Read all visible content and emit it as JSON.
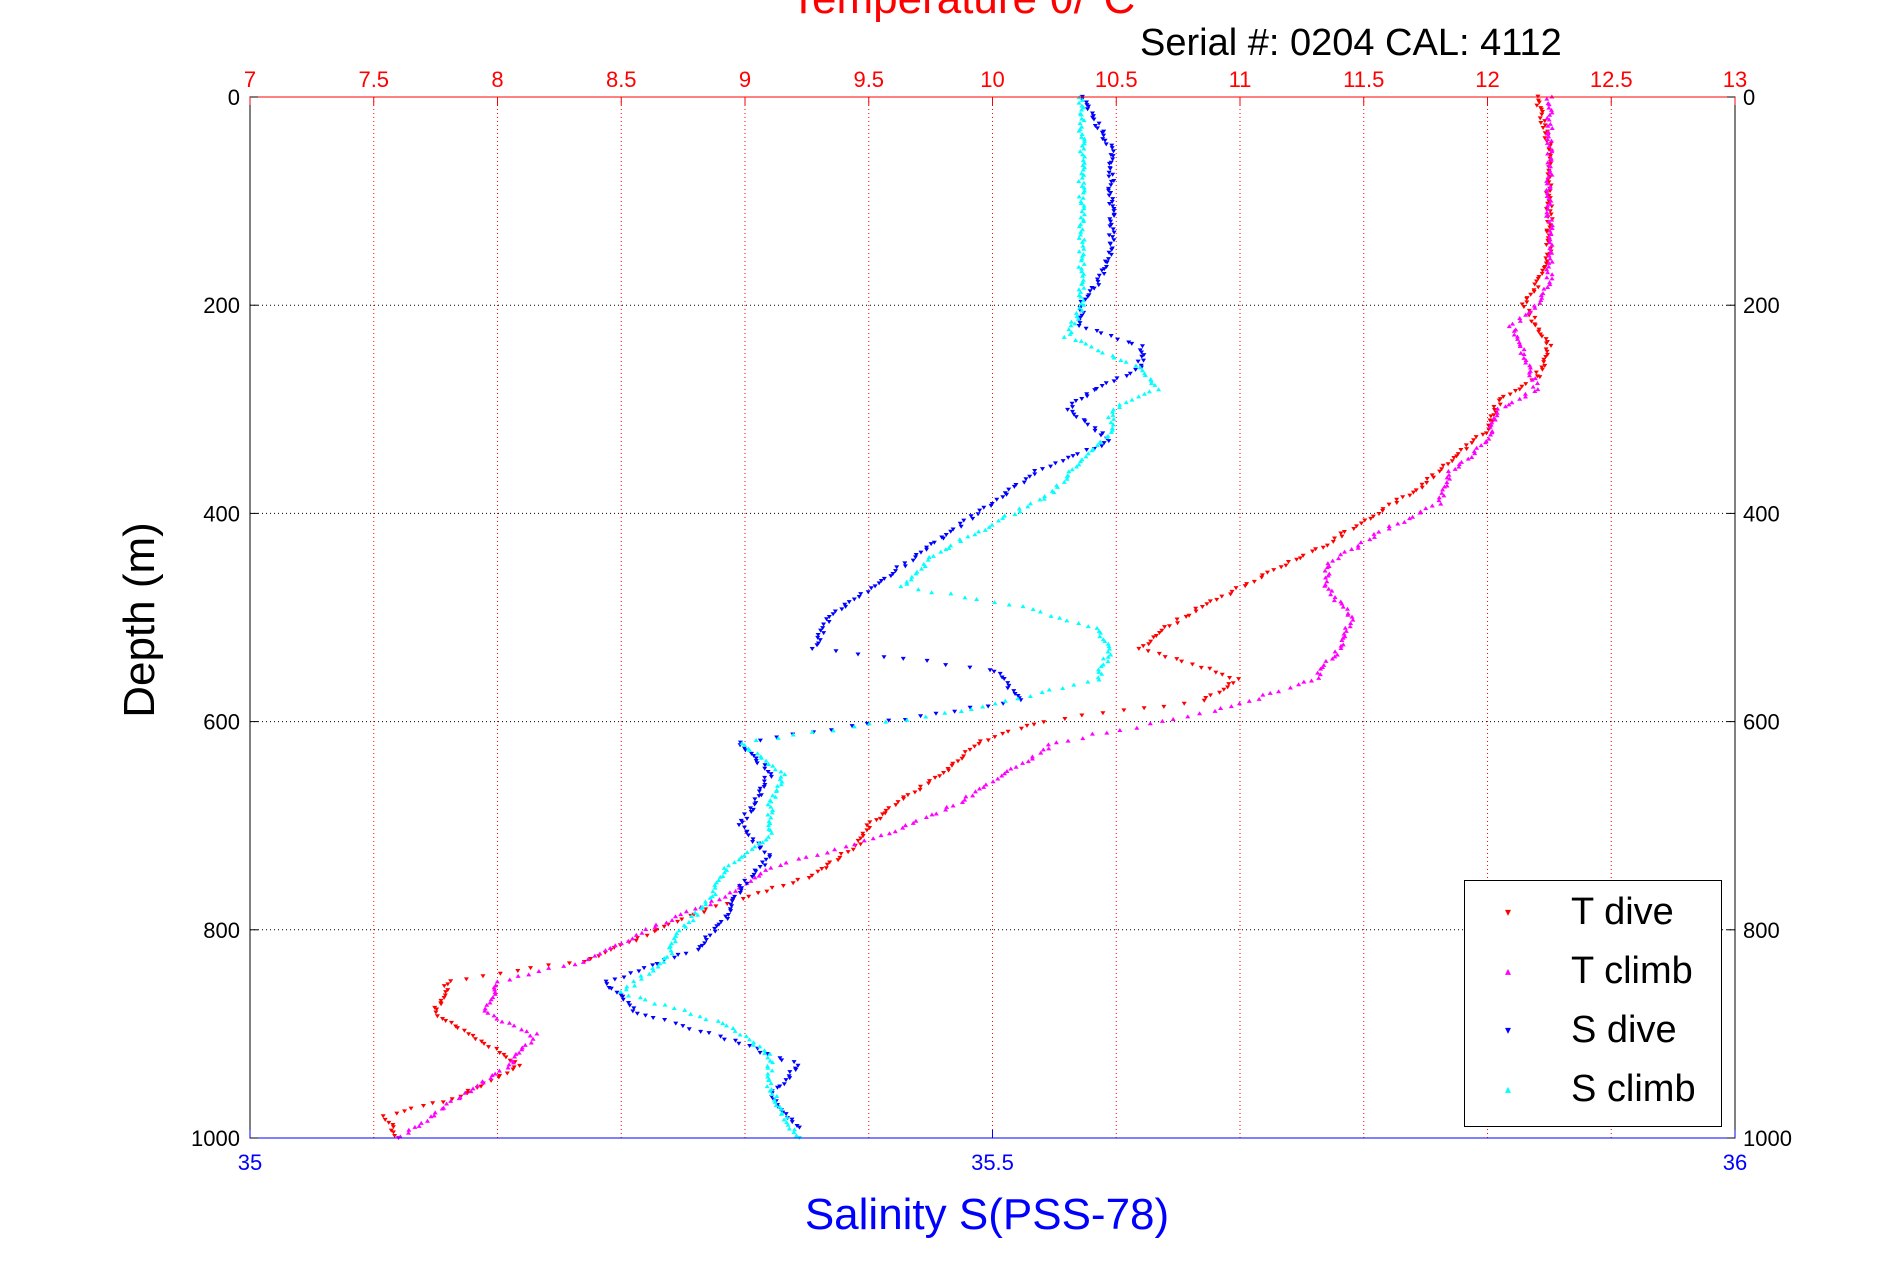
{
  "chart_data": {
    "type": "scatter",
    "title_top": "Temperature θ/°C",
    "subtitle": "Serial #: 0204  CAL: 4112",
    "ylabel": "Depth (m)",
    "xlabel_bottom": "Salinity S(PSS-78)",
    "y_axis": {
      "range": [
        0,
        1000
      ],
      "inverted": true,
      "ticks": [
        "0",
        "200",
        "400",
        "600",
        "800",
        "1000"
      ]
    },
    "x_top_axis": {
      "name": "Temperature",
      "range": [
        7,
        13
      ],
      "ticks": [
        "7",
        "7.5",
        "8",
        "8.5",
        "9",
        "9.5",
        "10",
        "10.5",
        "11",
        "11.5",
        "12",
        "12.5",
        "13"
      ]
    },
    "x_bottom_axis": {
      "name": "Salinity",
      "range": [
        35,
        36
      ],
      "ticks": [
        "35",
        "35.5",
        "36"
      ]
    },
    "grid": true,
    "legend_position": "bottom-right",
    "series": [
      {
        "name": "T dive",
        "axis": "top",
        "color": "#ff0000",
        "marker": "triangle-down",
        "depth": [
          0,
          50,
          100,
          150,
          180,
          200,
          240,
          270,
          290,
          320,
          350,
          380,
          400,
          430,
          460,
          490,
          510,
          530,
          560,
          580,
          600,
          620,
          650,
          680,
          700,
          720,
          750,
          780,
          800,
          830,
          850,
          880,
          910,
          930,
          960,
          980,
          1000
        ],
        "values": [
          12.2,
          12.25,
          12.25,
          12.25,
          12.2,
          12.15,
          12.25,
          12.2,
          12.05,
          12.0,
          11.85,
          11.7,
          11.55,
          11.35,
          11.1,
          10.85,
          10.7,
          10.6,
          11.0,
          10.85,
          10.2,
          9.95,
          9.8,
          9.6,
          9.5,
          9.45,
          9.25,
          8.85,
          8.65,
          8.35,
          7.8,
          7.75,
          7.95,
          8.1,
          7.85,
          7.55,
          7.6
        ]
      },
      {
        "name": "T climb",
        "axis": "top",
        "color": "#ff00ff",
        "marker": "triangle-up",
        "depth": [
          0,
          50,
          100,
          150,
          180,
          200,
          220,
          250,
          280,
          300,
          330,
          360,
          390,
          420,
          450,
          470,
          500,
          530,
          560,
          590,
          620,
          650,
          680,
          710,
          740,
          770,
          800,
          830,
          850,
          880,
          900,
          930,
          960,
          1000
        ],
        "values": [
          12.25,
          12.25,
          12.25,
          12.25,
          12.25,
          12.2,
          12.1,
          12.15,
          12.2,
          12.05,
          12.0,
          11.85,
          11.8,
          11.55,
          11.35,
          11.35,
          11.45,
          11.4,
          11.3,
          10.9,
          10.25,
          10.05,
          9.85,
          9.55,
          9.1,
          8.9,
          8.6,
          8.35,
          8.0,
          7.95,
          8.15,
          8.05,
          7.85,
          7.6
        ]
      },
      {
        "name": "S dive",
        "axis": "bottom",
        "color": "#0000ff",
        "marker": "triangle-down",
        "depth": [
          0,
          50,
          100,
          150,
          180,
          200,
          220,
          240,
          260,
          280,
          300,
          330,
          360,
          390,
          420,
          450,
          480,
          500,
          530,
          550,
          580,
          600,
          620,
          650,
          680,
          700,
          730,
          760,
          790,
          820,
          850,
          880,
          900,
          930,
          960,
          990
        ],
        "values": [
          35.56,
          35.58,
          35.58,
          35.58,
          35.57,
          35.56,
          35.56,
          35.6,
          35.6,
          35.57,
          35.55,
          35.58,
          35.53,
          35.5,
          35.47,
          35.44,
          35.41,
          35.39,
          35.38,
          35.5,
          35.52,
          35.43,
          35.33,
          35.35,
          35.34,
          35.33,
          35.35,
          35.33,
          35.32,
          35.3,
          35.24,
          35.26,
          35.31,
          35.37,
          35.35,
          35.37
        ]
      },
      {
        "name": "S climb",
        "axis": "bottom",
        "color": "#00ffff",
        "marker": "triangle-up",
        "depth": [
          0,
          50,
          100,
          150,
          200,
          230,
          260,
          280,
          300,
          320,
          350,
          380,
          410,
          440,
          470,
          490,
          510,
          530,
          560,
          590,
          620,
          650,
          680,
          710,
          740,
          770,
          800,
          830,
          860,
          890,
          920,
          950,
          980,
          1000
        ],
        "values": [
          35.56,
          35.56,
          35.56,
          35.56,
          35.56,
          35.55,
          35.6,
          35.61,
          35.58,
          35.58,
          35.56,
          35.54,
          35.5,
          35.46,
          35.44,
          35.52,
          35.57,
          35.58,
          35.57,
          35.48,
          35.33,
          35.36,
          35.35,
          35.35,
          35.32,
          35.31,
          35.29,
          35.28,
          35.25,
          35.32,
          35.35,
          35.35,
          35.36,
          35.37
        ]
      }
    ]
  }
}
